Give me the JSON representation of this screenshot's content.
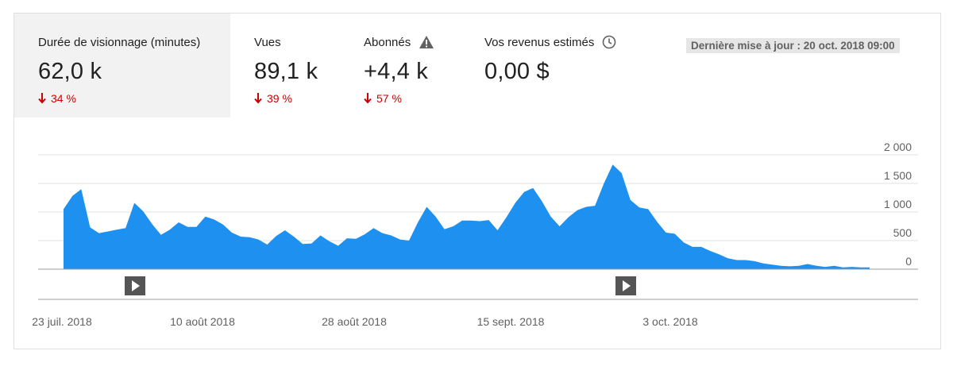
{
  "metrics": [
    {
      "label": "Durée de visionnage (minutes)",
      "value": "62,0 k",
      "change": "34 %",
      "direction": "down",
      "selected": true,
      "icon": ""
    },
    {
      "label": "Vues",
      "value": "89,1 k",
      "change": "39 %",
      "direction": "down",
      "selected": false,
      "icon": ""
    },
    {
      "label": "Abonnés",
      "value": "+4,4 k",
      "change": "57 %",
      "direction": "down",
      "selected": false,
      "icon": "warning-icon"
    },
    {
      "label": "Vos revenus estimés",
      "value": "0,00 $",
      "change": "",
      "direction": "",
      "selected": false,
      "icon": "clock-icon"
    }
  ],
  "last_updated": "Dernière mise à jour : 20 oct. 2018 09:00",
  "colors": {
    "area": "#1e90f0",
    "decline": "#cc0000",
    "grid": "#e0e0e0",
    "axis": "#9e9e9e"
  },
  "chart_data": {
    "type": "area",
    "series": [
      {
        "values": [
          1050,
          1280,
          1400,
          730,
          630,
          660,
          690,
          720,
          1160,
          1010,
          790,
          600,
          690,
          820,
          740,
          740,
          920,
          870,
          780,
          640,
          570,
          560,
          520,
          430,
          580,
          680,
          570,
          440,
          450,
          590,
          490,
          410,
          540,
          530,
          610,
          720,
          630,
          590,
          520,
          500,
          820,
          1090,
          920,
          700,
          750,
          850,
          850,
          840,
          860,
          680,
          910,
          1160,
          1350,
          1420,
          1190,
          920,
          750,
          910,
          1030,
          1090,
          1110,
          1500,
          1830,
          1680,
          1210,
          1080,
          1050,
          830,
          640,
          620,
          470,
          390,
          390,
          320,
          260,
          190,
          160,
          160,
          140,
          100,
          80,
          60,
          50,
          60,
          90,
          60,
          40,
          60,
          30,
          40,
          30,
          30
        ]
      }
    ],
    "x_start": "2018-07-22",
    "x_end": "2018-10-19",
    "xticks": [
      "23 juil. 2018",
      "10 août 2018",
      "28 août 2018",
      "15 sept. 2018",
      "3 oct. 2018"
    ],
    "yticks": [
      "0",
      "500",
      "1 000",
      "1 500",
      "2 000"
    ],
    "ylim": [
      0,
      2000
    ],
    "grid": true,
    "markers": [
      {
        "icon": "play-icon"
      },
      {
        "icon": "play-icon"
      }
    ]
  }
}
